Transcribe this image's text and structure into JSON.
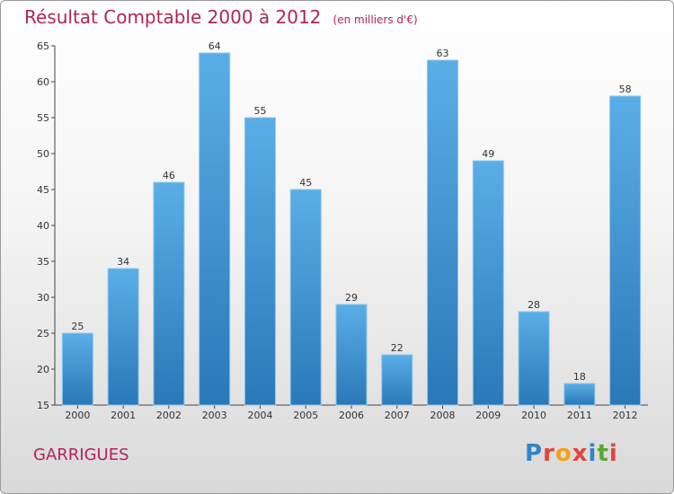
{
  "header": {
    "title": "Résultat Comptable 2000 à 2012",
    "subtitle": "(en milliers d'€)"
  },
  "footer": {
    "commune": "GARRIGUES",
    "logo_text": "Proxiti",
    "logo_colors": [
      "#2e86c8",
      "#e0463a",
      "#f2a21b",
      "#e0463a",
      "#2e86c8",
      "#5aa832",
      "#e0463a"
    ]
  },
  "chart_data": {
    "type": "bar",
    "categories": [
      "2000",
      "2001",
      "2002",
      "2003",
      "2004",
      "2005",
      "2006",
      "2007",
      "2008",
      "2009",
      "2010",
      "2011",
      "2012"
    ],
    "values": [
      25,
      34,
      46,
      64,
      55,
      45,
      29,
      22,
      63,
      49,
      28,
      18,
      58
    ],
    "ylim": [
      15,
      65
    ],
    "yticks": [
      15,
      20,
      25,
      30,
      35,
      40,
      45,
      50,
      55,
      60,
      65
    ],
    "bar_color_top": "#5aaee6",
    "bar_color_bottom": "#2a78b8",
    "grid": false
  }
}
